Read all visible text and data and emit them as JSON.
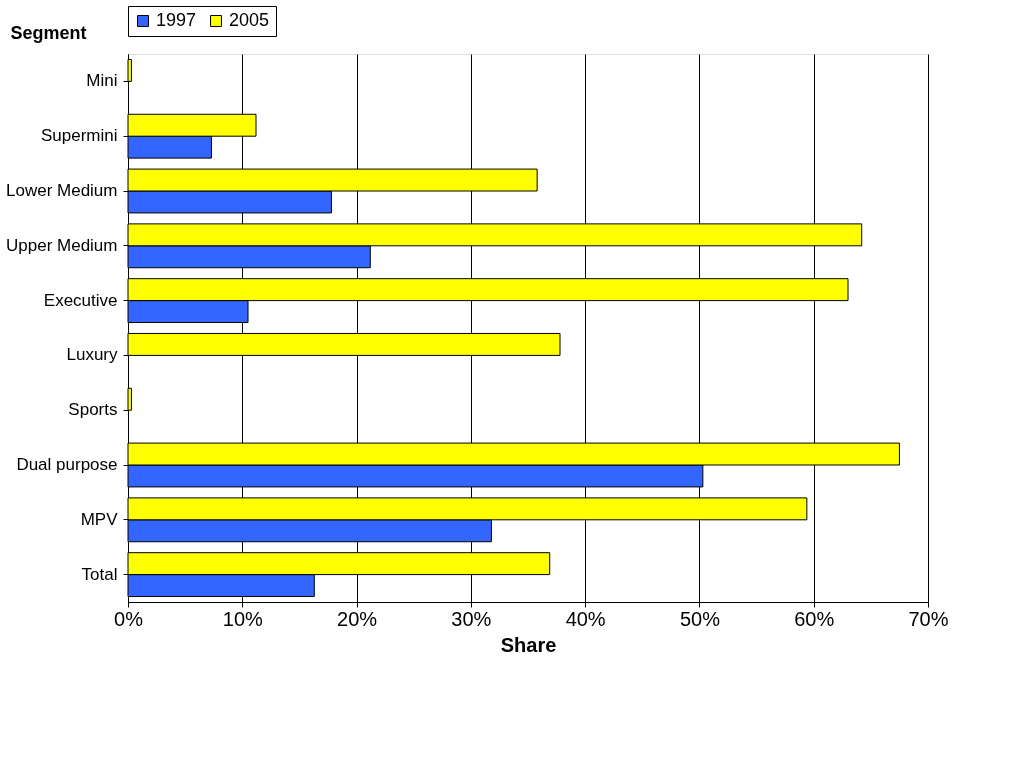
{
  "chart_data": {
    "type": "bar",
    "orientation": "horizontal",
    "xlabel": "Share",
    "ylabel": "Segment",
    "categories": [
      "Mini",
      "Supermini",
      "Lower Medium",
      "Upper Medium",
      "Executive",
      "Luxury",
      "Sports",
      "Dual purpose",
      "MPV",
      "Total"
    ],
    "series": [
      {
        "name": "1997",
        "color": "#3366ff",
        "values": [
          null,
          7.3,
          17.8,
          21.2,
          10.5,
          null,
          null,
          50.3,
          31.8,
          16.3
        ]
      },
      {
        "name": "2005",
        "color": "#ffff00",
        "values": [
          0.3,
          11.2,
          35.8,
          64.2,
          63.0,
          37.8,
          0.3,
          67.5,
          59.4,
          36.9
        ]
      }
    ],
    "xlim": [
      0,
      70
    ],
    "xticks": [
      {
        "value": 0,
        "label": "0%"
      },
      {
        "value": 10,
        "label": "10%"
      },
      {
        "value": 20,
        "label": "20%"
      },
      {
        "value": 30,
        "label": "30%"
      },
      {
        "value": 40,
        "label": "40%"
      },
      {
        "value": 50,
        "label": "50%"
      },
      {
        "value": 60,
        "label": "60%"
      },
      {
        "value": 70,
        "label": "70%"
      }
    ],
    "grid": "x",
    "legend": "top"
  }
}
